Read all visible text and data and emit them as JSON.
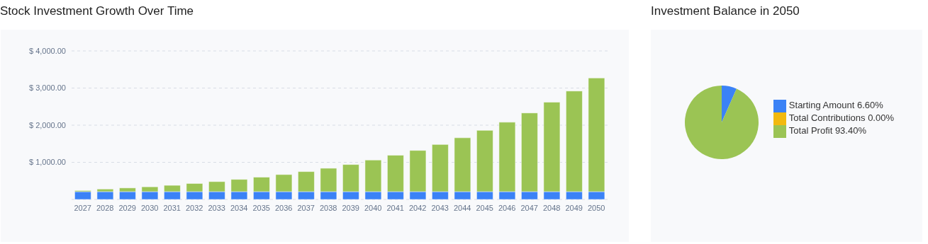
{
  "chart_data": [
    {
      "type": "bar",
      "title": "Stock Investment Growth Over Time",
      "stacked": true,
      "categories": [
        "2027",
        "2028",
        "2029",
        "2030",
        "2031",
        "2032",
        "2033",
        "2034",
        "2035",
        "2036",
        "2037",
        "2038",
        "2039",
        "2040",
        "2041",
        "2042",
        "2043",
        "2044",
        "2045",
        "2046",
        "2047",
        "2048",
        "2049",
        "2050"
      ],
      "series": [
        {
          "color": "#3b82f6",
          "values": [
            210,
            210,
            210,
            210,
            210,
            210,
            210,
            210,
            210,
            210,
            210,
            210,
            210,
            210,
            210,
            210,
            210,
            210,
            210,
            210,
            210,
            210,
            210,
            210
          ]
        },
        {
          "color": "#9bc454",
          "values": [
            30,
            70,
            100,
            130,
            170,
            220,
            270,
            330,
            390,
            460,
            540,
            630,
            730,
            850,
            980,
            1110,
            1270,
            1450,
            1650,
            1870,
            2120,
            2410,
            2710,
            3060
          ]
        }
      ],
      "ylim": [
        0,
        4000
      ],
      "yticks": [
        {
          "value": 0,
          "label": null
        },
        {
          "value": 1000,
          "label": "$ 1,000.00"
        },
        {
          "value": 2000,
          "label": "$ 2,000.00"
        },
        {
          "value": 3000,
          "label": "$ 3,000.00"
        },
        {
          "value": 4000,
          "label": "$ 4,000.00"
        }
      ],
      "grid": "y"
    },
    {
      "type": "pie",
      "title": "Investment Balance in 2050",
      "categories": [
        "Starting Amount",
        "Total Contributions",
        "Total Profit"
      ],
      "values": [
        6.6,
        0,
        93.4
      ],
      "colors": [
        "#3b82f6",
        "#f2b90f",
        "#9bc454"
      ],
      "value_labels": [
        "6.60%",
        "0.00%",
        "93.40%"
      ],
      "legend": "right"
    }
  ]
}
